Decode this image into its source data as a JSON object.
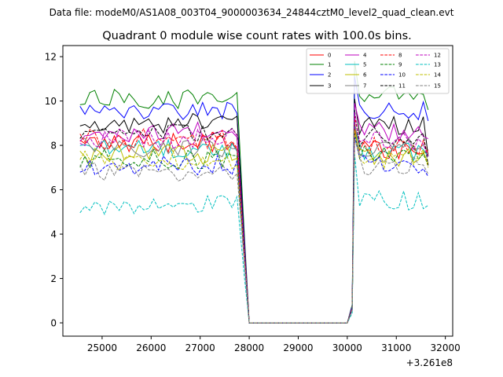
{
  "header": {
    "data_file": "Data file: modeM0/AS1A08_003T04_9000003634_24844cztM0_level2_quad_clean.evt"
  },
  "chart_data": {
    "type": "line",
    "title": "Quadrant 0 module wise count rates with 100.0s bins.",
    "xlabel": "",
    "ylabel": "",
    "x_offset_label": "+3.261e8",
    "xlim": [
      24200,
      32150
    ],
    "ylim": [
      -0.6,
      12.5
    ],
    "xticks": [
      25000,
      26000,
      27000,
      28000,
      29000,
      30000,
      31000,
      32000
    ],
    "xtick_labels": [
      "25000",
      "26000",
      "27000",
      "28000",
      "29000",
      "30000",
      "31000",
      "32000"
    ],
    "yticks": [
      0,
      2,
      4,
      6,
      8,
      10,
      12
    ],
    "ytick_labels": [
      "0",
      "2",
      "4",
      "6",
      "8",
      "10",
      "12"
    ],
    "legend_position": "top-right",
    "segment1": {
      "x_start": 24550,
      "x_end": 27750,
      "step": 100
    },
    "segment2": {
      "x_start": 30150,
      "x_end": 31650,
      "step": 100
    },
    "gap": {
      "x_drop": 27900,
      "x_rise": 30100,
      "x_plateau": [
        28000,
        29000,
        30000
      ],
      "value": 0
    },
    "series": [
      {
        "name": "0",
        "color": "#ff0000",
        "style": "solid",
        "level1": 8.1,
        "level2": 7.8,
        "peak": 8.8,
        "end_value": 7.8
      },
      {
        "name": "1",
        "color": "#008000",
        "style": "solid",
        "level1": 10.1,
        "level2": 10.2,
        "peak": 11.8,
        "end_value": 9.6
      },
      {
        "name": "2",
        "color": "#0000ff",
        "style": "solid",
        "level1": 9.5,
        "level2": 9.6,
        "peak": 11.1,
        "end_value": 9.1
      },
      {
        "name": "3",
        "color": "#000000",
        "style": "solid",
        "level1": 9.0,
        "level2": 8.9,
        "peak": 10.1,
        "end_value": 7.5
      },
      {
        "name": "4",
        "color": "#bf00bf",
        "style": "solid",
        "level1": 8.6,
        "level2": 8.6,
        "peak": 9.9,
        "end_value": 8.3
      },
      {
        "name": "5",
        "color": "#00bfbf",
        "style": "solid",
        "level1": 7.8,
        "level2": 7.7,
        "peak": 8.9,
        "end_value": 7.5
      },
      {
        "name": "6",
        "color": "#bfbf00",
        "style": "solid",
        "level1": 7.6,
        "level2": 7.5,
        "peak": 8.6,
        "end_value": 7.2
      },
      {
        "name": "7",
        "color": "#808080",
        "style": "solid",
        "level1": 7.9,
        "level2": 7.9,
        "peak": 9.1,
        "end_value": 7.7
      },
      {
        "name": "8",
        "color": "#ff0000",
        "style": "dashed",
        "level1": 8.3,
        "level2": 8.0,
        "peak": 9.3,
        "end_value": 7.6
      },
      {
        "name": "9",
        "color": "#008000",
        "style": "dashed",
        "level1": 7.4,
        "level2": 7.6,
        "peak": 8.6,
        "end_value": 7.1
      },
      {
        "name": "10",
        "color": "#0000ff",
        "style": "dashed",
        "level1": 7.1,
        "level2": 7.1,
        "peak": 8.4,
        "end_value": 6.6
      },
      {
        "name": "11",
        "color": "#000000",
        "style": "dashed",
        "level1": 8.6,
        "level2": 8.4,
        "peak": 9.6,
        "end_value": 7.1
      },
      {
        "name": "12",
        "color": "#bf00bf",
        "style": "dashed",
        "level1": 8.3,
        "level2": 8.2,
        "peak": 9.5,
        "end_value": 7.5
      },
      {
        "name": "13",
        "color": "#00bfbf",
        "style": "dashed",
        "level1": 5.3,
        "level2": 5.5,
        "peak": 7.6,
        "end_value": 5.3
      },
      {
        "name": "14",
        "color": "#bfbf00",
        "style": "dashed",
        "level1": 7.3,
        "level2": 7.4,
        "peak": 8.7,
        "end_value": 7.0
      },
      {
        "name": "15",
        "color": "#808080",
        "style": "dashed",
        "level1": 6.8,
        "level2": 7.1,
        "peak": 8.3,
        "end_value": 6.7
      }
    ]
  }
}
